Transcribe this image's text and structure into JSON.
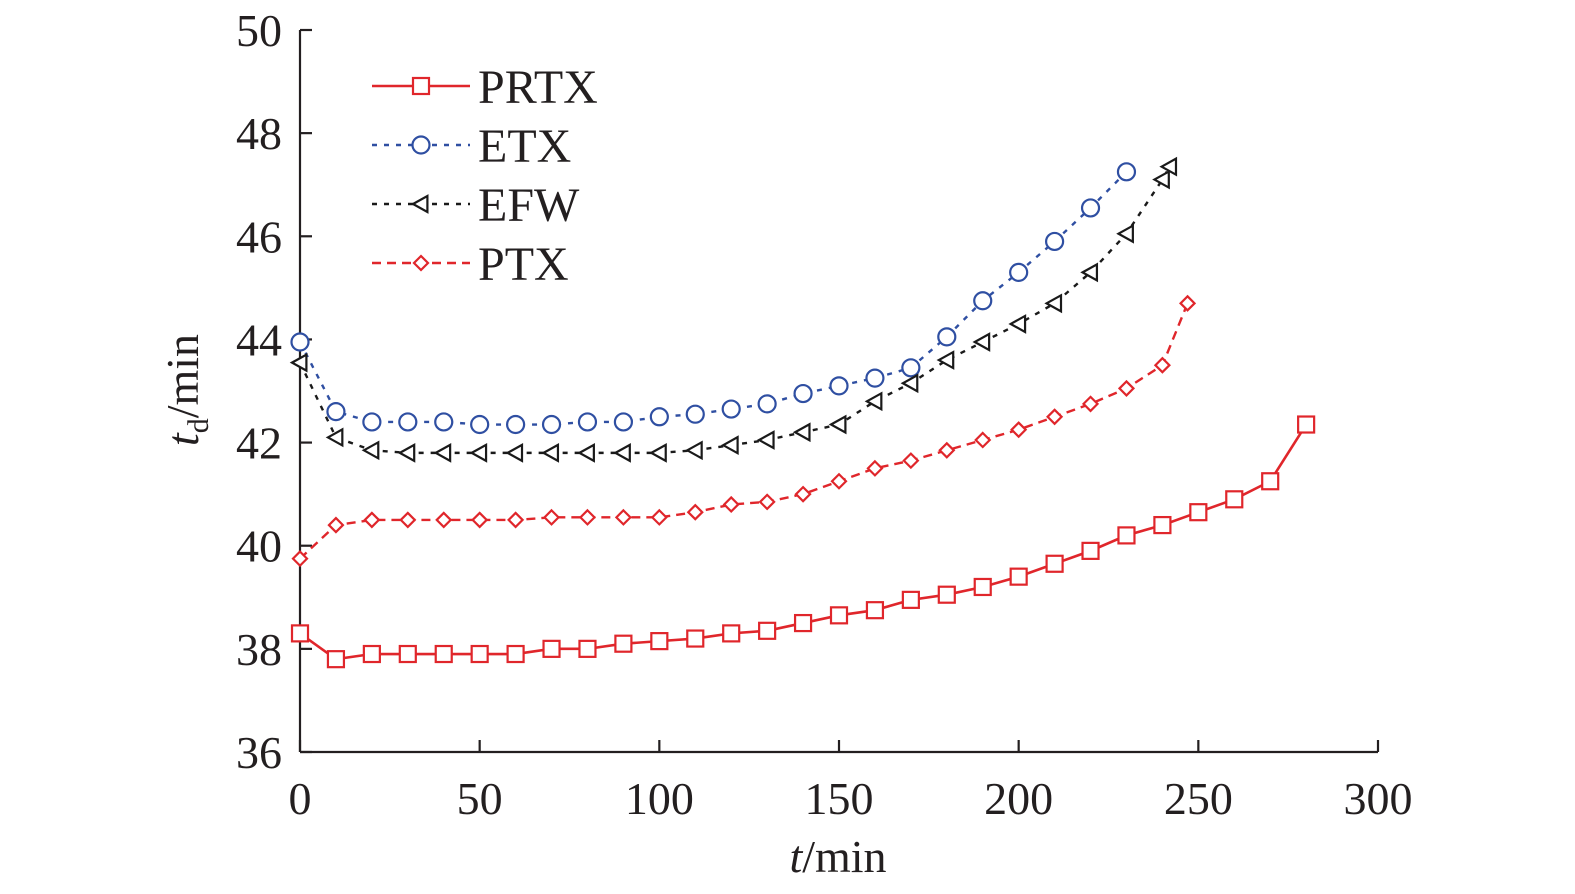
{
  "chart_data": {
    "type": "line",
    "xlabel": {
      "var": "t",
      "unit": "/min"
    },
    "ylabel": {
      "var": "t",
      "sub": "d",
      "unit": "/min"
    },
    "xlim": [
      0,
      300
    ],
    "ylim": [
      36,
      50
    ],
    "xticks": [
      0,
      50,
      100,
      150,
      200,
      250,
      300
    ],
    "yticks": [
      36,
      38,
      40,
      42,
      44,
      46,
      48,
      50
    ],
    "grid": false,
    "legend_position": "top-left",
    "series": [
      {
        "name": "PRTX",
        "color": "#e0262b",
        "marker": "square",
        "dash": "solid",
        "x": [
          0,
          10,
          20,
          30,
          40,
          50,
          60,
          70,
          80,
          90,
          100,
          110,
          120,
          130,
          140,
          150,
          160,
          170,
          180,
          190,
          200,
          210,
          220,
          230,
          240,
          250,
          260,
          270,
          280
        ],
        "y": [
          38.3,
          37.8,
          37.9,
          37.9,
          37.9,
          37.9,
          37.9,
          38.0,
          38.0,
          38.1,
          38.15,
          38.2,
          38.3,
          38.35,
          38.5,
          38.65,
          38.75,
          38.95,
          39.05,
          39.2,
          39.4,
          39.65,
          39.9,
          40.2,
          40.4,
          40.65,
          40.9,
          41.25,
          42.35
        ]
      },
      {
        "name": "ETX",
        "color": "#2f4fa2",
        "marker": "circle",
        "dash": "dotted",
        "x": [
          0,
          10,
          20,
          30,
          40,
          50,
          60,
          70,
          80,
          90,
          100,
          110,
          120,
          130,
          140,
          150,
          160,
          170,
          180,
          190,
          200,
          210,
          220,
          230
        ],
        "y": [
          43.95,
          42.6,
          42.4,
          42.4,
          42.4,
          42.35,
          42.35,
          42.35,
          42.4,
          42.4,
          42.5,
          42.55,
          42.65,
          42.75,
          42.95,
          43.1,
          43.25,
          43.45,
          44.05,
          44.75,
          45.3,
          45.9,
          46.55,
          47.25
        ]
      },
      {
        "name": "EFW",
        "color": "#1a1a1a",
        "marker": "triangle-left",
        "dash": "dotted",
        "x": [
          0,
          10,
          20,
          30,
          40,
          50,
          60,
          70,
          80,
          90,
          100,
          110,
          120,
          130,
          140,
          150,
          160,
          170,
          180,
          190,
          200,
          210,
          220,
          230,
          240,
          242
        ],
        "y": [
          43.55,
          42.1,
          41.85,
          41.8,
          41.8,
          41.8,
          41.8,
          41.8,
          41.8,
          41.8,
          41.8,
          41.85,
          41.95,
          42.05,
          42.2,
          42.35,
          42.8,
          43.15,
          43.6,
          43.95,
          44.3,
          44.7,
          45.3,
          46.05,
          47.1,
          47.35
        ]
      },
      {
        "name": "PTX",
        "color": "#e0262b",
        "marker": "diamond",
        "dash": "dashed",
        "x": [
          0,
          10,
          20,
          30,
          40,
          50,
          60,
          70,
          80,
          90,
          100,
          110,
          120,
          130,
          140,
          150,
          160,
          170,
          180,
          190,
          200,
          210,
          220,
          230,
          240,
          247
        ],
        "y": [
          39.75,
          40.4,
          40.5,
          40.5,
          40.5,
          40.5,
          40.5,
          40.55,
          40.55,
          40.55,
          40.55,
          40.65,
          40.8,
          40.85,
          41.0,
          41.25,
          41.5,
          41.65,
          41.85,
          42.05,
          42.25,
          42.5,
          42.75,
          43.05,
          43.5,
          44.7
        ]
      }
    ]
  }
}
